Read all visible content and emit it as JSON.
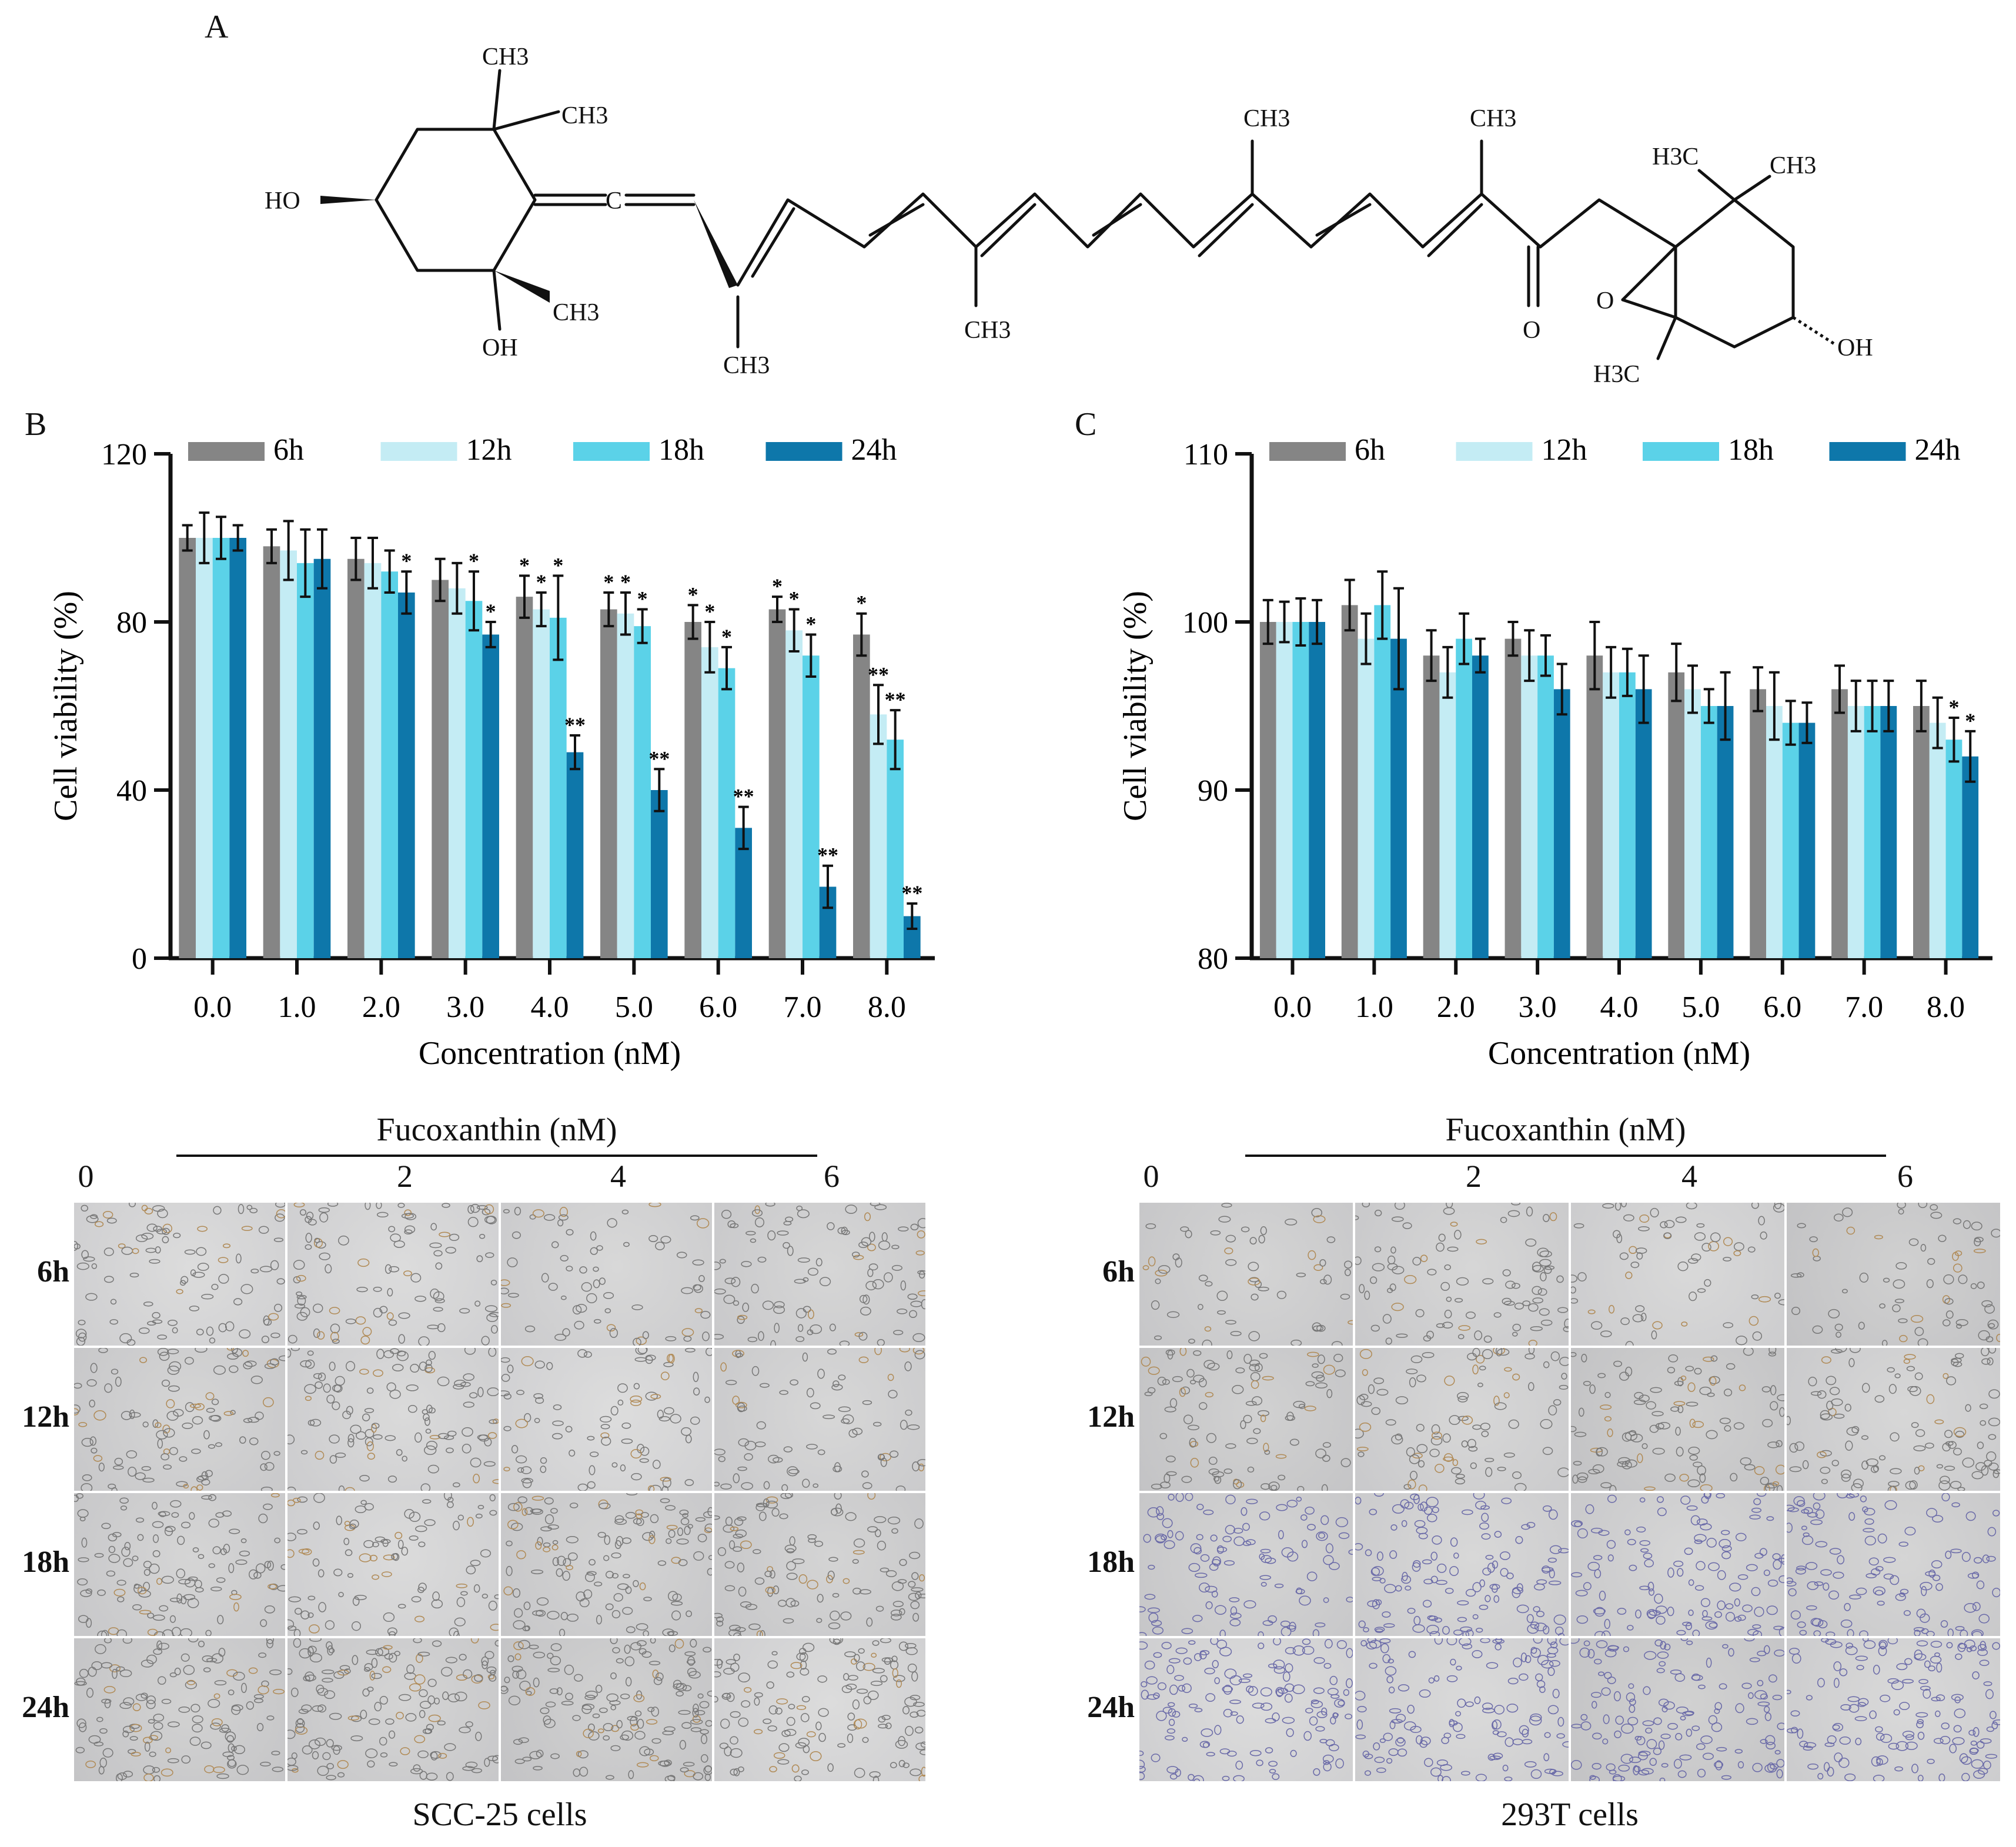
{
  "panels": {
    "a": "A",
    "b": "B",
    "c": "C"
  },
  "molecule": {
    "labels": [
      "CH3",
      "CH3",
      "HO",
      "C",
      "CH3",
      "OH",
      "CH3",
      "CH3",
      "CH3",
      "CH3",
      "H3C",
      "CH3",
      "O",
      "O",
      "OH",
      "H3C"
    ]
  },
  "chart_data": [
    {
      "type": "bar",
      "panel": "B",
      "categories": [
        "0.0",
        "1.0",
        "2.0",
        "3.0",
        "4.0",
        "5.0",
        "6.0",
        "7.0",
        "8.0"
      ],
      "xlabel": "Concentration (nM)",
      "ylabel": "Cell viability (%)",
      "ylim": [
        0,
        120
      ],
      "yticks": [
        "0",
        "40",
        "80",
        "120"
      ],
      "legend_position": "top",
      "series": [
        {
          "name": "6h",
          "color": "#858585",
          "values": [
            100,
            98,
            95,
            90,
            86,
            83,
            80,
            83,
            77
          ],
          "errors": [
            3,
            4,
            5,
            5,
            5,
            4,
            4,
            3,
            5
          ],
          "sig": [
            "",
            "",
            "",
            "",
            "*",
            "*",
            "*",
            "*",
            "*"
          ]
        },
        {
          "name": "12h",
          "color": "#c4ecf4",
          "values": [
            100,
            97,
            94,
            88,
            83,
            82,
            74,
            78,
            58
          ],
          "errors": [
            6,
            7,
            6,
            6,
            4,
            5,
            6,
            5,
            7
          ],
          "sig": [
            "",
            "",
            "",
            "",
            "*",
            "*",
            "*",
            "*",
            "**"
          ]
        },
        {
          "name": "18h",
          "color": "#5bd2e8",
          "values": [
            100,
            94,
            92,
            85,
            81,
            79,
            69,
            72,
            52
          ],
          "errors": [
            5,
            8,
            5,
            7,
            10,
            4,
            5,
            5,
            7
          ],
          "sig": [
            "",
            "",
            "",
            "*",
            "*",
            "*",
            "*",
            "*",
            "**"
          ]
        },
        {
          "name": "24h",
          "color": "#0e77aa",
          "values": [
            100,
            95,
            87,
            77,
            49,
            40,
            31,
            17,
            10
          ],
          "errors": [
            3,
            7,
            5,
            3,
            4,
            5,
            5,
            5,
            3
          ],
          "sig": [
            "",
            "",
            "*",
            "*",
            "**",
            "**",
            "**",
            "**",
            "**"
          ]
        }
      ]
    },
    {
      "type": "bar",
      "panel": "C",
      "categories": [
        "0.0",
        "1.0",
        "2.0",
        "3.0",
        "4.0",
        "5.0",
        "6.0",
        "7.0",
        "8.0"
      ],
      "xlabel": "Concentration (nM)",
      "ylabel": "Cell viability (%)",
      "ylim": [
        80,
        110
      ],
      "yticks": [
        "80",
        "90",
        "100",
        "110"
      ],
      "legend_position": "top",
      "series": [
        {
          "name": "6h",
          "color": "#858585",
          "values": [
            100,
            101,
            98,
            99,
            98,
            97,
            96,
            96,
            95
          ],
          "errors": [
            1.3,
            1.5,
            1.5,
            1.0,
            2.0,
            1.7,
            1.3,
            1.4,
            1.5
          ],
          "sig": [
            "",
            "",
            "",
            "",
            "",
            "",
            "",
            "",
            ""
          ]
        },
        {
          "name": "12h",
          "color": "#c4ecf4",
          "values": [
            100,
            99,
            97,
            98,
            97,
            96,
            95,
            95,
            94
          ],
          "errors": [
            1.2,
            1.5,
            1.5,
            1.5,
            1.5,
            1.4,
            2.0,
            1.5,
            1.5
          ],
          "sig": [
            "",
            "",
            "",
            "",
            "",
            "",
            "",
            "",
            ""
          ]
        },
        {
          "name": "18h",
          "color": "#5bd2e8",
          "values": [
            100,
            101,
            99,
            98,
            97,
            95,
            94,
            95,
            93
          ],
          "errors": [
            1.4,
            2.0,
            1.5,
            1.2,
            1.4,
            1.0,
            1.3,
            1.5,
            1.3
          ],
          "sig": [
            "",
            "",
            "",
            "",
            "",
            "",
            "",
            "",
            "*"
          ]
        },
        {
          "name": "24h",
          "color": "#0e77aa",
          "values": [
            100,
            99,
            98,
            96,
            96,
            95,
            94,
            95,
            92
          ],
          "errors": [
            1.3,
            3.0,
            1.0,
            1.5,
            2.0,
            2.0,
            1.2,
            1.5,
            1.5
          ],
          "sig": [
            "",
            "",
            "",
            "",
            "",
            "",
            "",
            "",
            "*"
          ]
        }
      ]
    }
  ],
  "micrographs": {
    "left": {
      "title": "Fucoxanthin (nM)",
      "columns": [
        "0",
        "2",
        "4",
        "6"
      ],
      "rows": [
        "6h",
        "12h",
        "18h",
        "24h"
      ],
      "caption": "SCC-25 cells"
    },
    "right": {
      "title": "Fucoxanthin (nM)",
      "columns": [
        "0",
        "2",
        "4",
        "6"
      ],
      "rows": [
        "6h",
        "12h",
        "18h",
        "24h"
      ],
      "caption": "293T cells"
    }
  }
}
